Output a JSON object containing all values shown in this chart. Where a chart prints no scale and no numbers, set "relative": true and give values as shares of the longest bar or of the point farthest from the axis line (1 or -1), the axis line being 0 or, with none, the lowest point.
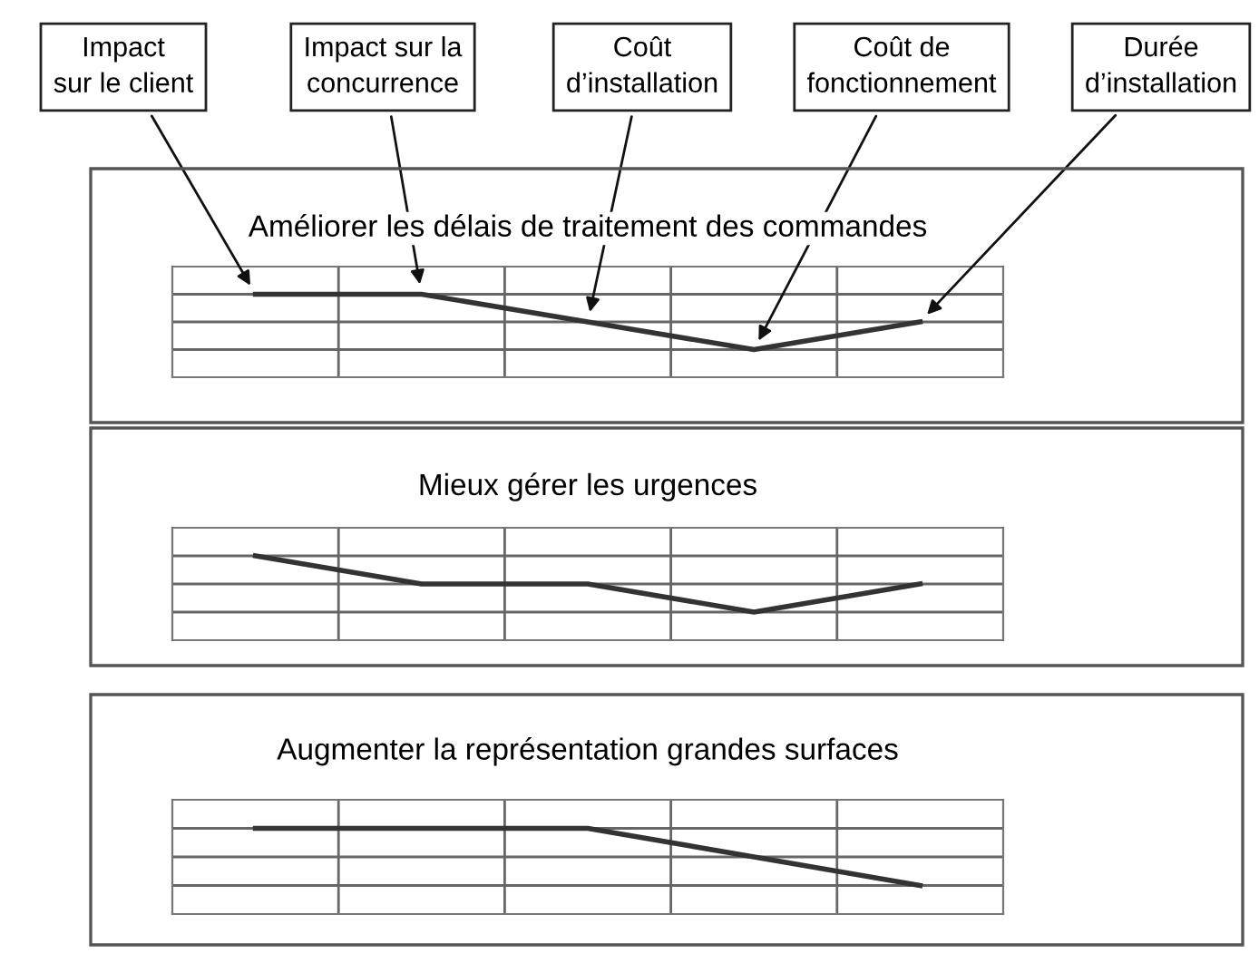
{
  "chart_data": [
    {
      "type": "line",
      "title": "Améliorer les délais de traitement des commandes",
      "categories": [
        null,
        null,
        null,
        null,
        null
      ],
      "annotations": [
        "Impact\nsur le client",
        "Impact sur la\nconcurrence",
        "Coût\nd’installation",
        "Coût de\nfonctionnement",
        "Durée\nd’installation"
      ],
      "relative": true,
      "grid": true,
      "series": [
        {
          "color": "#333333",
          "values": [
            1,
            1,
            0.667,
            0.333,
            0.667
          ]
        }
      ]
    },
    {
      "type": "line",
      "title": "Mieux gérer les urgences",
      "categories": [
        null,
        null,
        null,
        null,
        null
      ],
      "relative": true,
      "grid": true,
      "series": [
        {
          "color": "#333333",
          "values": [
            1,
            0.667,
            0.667,
            0.333,
            0.667
          ]
        }
      ]
    },
    {
      "type": "line",
      "title": "Augmenter la représentation grandes surfaces",
      "categories": [
        null,
        null,
        null,
        null,
        null
      ],
      "relative": true,
      "grid": true,
      "series": [
        {
          "color": "#333333",
          "values": [
            1,
            1,
            1,
            0.667,
            0.333
          ]
        }
      ]
    }
  ]
}
